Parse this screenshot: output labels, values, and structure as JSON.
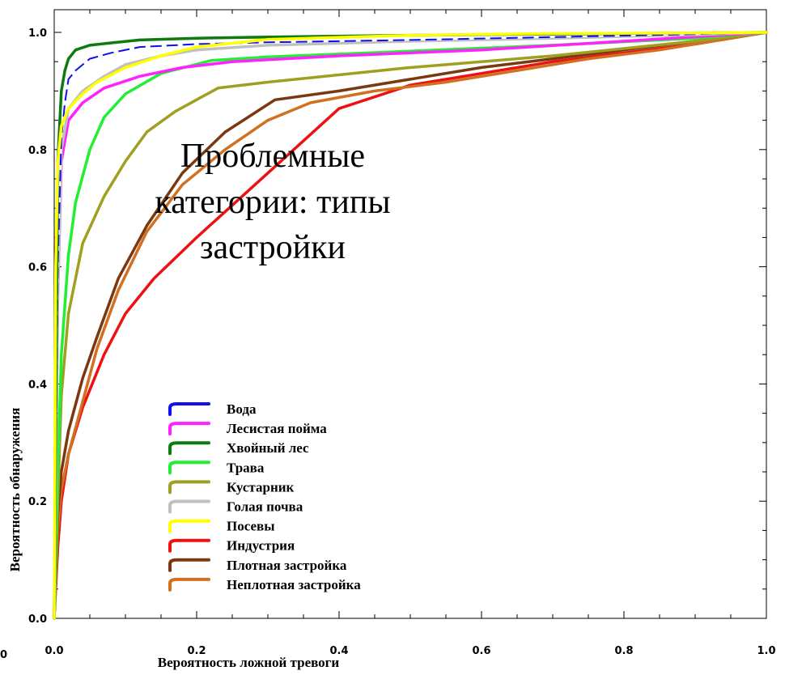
{
  "chart_data": {
    "type": "line",
    "title": "",
    "xlabel": "Вероятность ложной тревоги",
    "ylabel": "Вероятность обнаружения",
    "xlim": [
      0.0,
      1.0
    ],
    "ylim": [
      0.0,
      1.0
    ],
    "x_ticks": [
      "0.0",
      "0.2",
      "0.4",
      "0.6",
      "0.8",
      "1.0"
    ],
    "y_ticks": [
      "0.0",
      "0.2",
      "0.4",
      "0.6",
      "0.8",
      "1.0"
    ],
    "corner_label": "0",
    "grid": false,
    "legend_position": "bottom-left-center",
    "annotation": [
      "Проблемные",
      "категории: типы",
      "застройки"
    ],
    "series": [
      {
        "name": "Вода",
        "color": "#1010ee",
        "dashed": true,
        "x": [
          0,
          0.005,
          0.01,
          0.015,
          0.02,
          0.03,
          0.05,
          0.08,
          0.12,
          0.2,
          0.3,
          0.5,
          0.7,
          0.9,
          1.0
        ],
        "y": [
          0,
          0.6,
          0.82,
          0.88,
          0.92,
          0.935,
          0.955,
          0.965,
          0.975,
          0.98,
          0.983,
          0.987,
          0.992,
          0.997,
          1.0
        ]
      },
      {
        "name": "Лесистая пойма",
        "color": "#ff22ff",
        "dashed": false,
        "x": [
          0,
          0.005,
          0.01,
          0.02,
          0.04,
          0.07,
          0.12,
          0.18,
          0.25,
          0.4,
          0.6,
          0.8,
          1.0
        ],
        "y": [
          0,
          0.55,
          0.78,
          0.85,
          0.88,
          0.905,
          0.925,
          0.94,
          0.95,
          0.96,
          0.97,
          0.985,
          1.0
        ]
      },
      {
        "name": "Хвойный лес",
        "color": "#0f7a0f",
        "dashed": false,
        "x": [
          0,
          0.005,
          0.01,
          0.015,
          0.02,
          0.03,
          0.05,
          0.08,
          0.12,
          0.2,
          0.3,
          0.5,
          0.8,
          1.0
        ],
        "y": [
          0,
          0.78,
          0.9,
          0.935,
          0.955,
          0.97,
          0.978,
          0.982,
          0.987,
          0.99,
          0.992,
          0.995,
          0.998,
          1.0
        ]
      },
      {
        "name": "Трава",
        "color": "#22ee33",
        "dashed": false,
        "x": [
          0,
          0.005,
          0.01,
          0.02,
          0.03,
          0.05,
          0.07,
          0.1,
          0.15,
          0.22,
          0.3,
          0.5,
          0.7,
          0.9,
          1.0
        ],
        "y": [
          0,
          0.25,
          0.45,
          0.62,
          0.71,
          0.8,
          0.855,
          0.895,
          0.93,
          0.952,
          0.958,
          0.968,
          0.978,
          0.99,
          1.0
        ]
      },
      {
        "name": "Кустарник",
        "color": "#a0a020",
        "dashed": false,
        "x": [
          0,
          0.005,
          0.01,
          0.02,
          0.04,
          0.07,
          0.1,
          0.13,
          0.17,
          0.23,
          0.3,
          0.5,
          0.7,
          0.9,
          1.0
        ],
        "y": [
          0,
          0.2,
          0.38,
          0.52,
          0.64,
          0.72,
          0.78,
          0.83,
          0.865,
          0.905,
          0.915,
          0.94,
          0.96,
          0.985,
          1.0
        ]
      },
      {
        "name": "Голая почва",
        "color": "#c0c0c0",
        "dashed": false,
        "x": [
          0,
          0.005,
          0.01,
          0.02,
          0.04,
          0.07,
          0.1,
          0.15,
          0.2,
          0.3,
          0.5,
          0.7,
          0.9,
          1.0
        ],
        "y": [
          0,
          0.55,
          0.8,
          0.87,
          0.9,
          0.925,
          0.945,
          0.96,
          0.97,
          0.978,
          0.985,
          0.99,
          0.996,
          1.0
        ]
      },
      {
        "name": "Посевы",
        "color": "#ffff00",
        "dashed": false,
        "x": [
          0,
          0.002,
          0.005,
          0.01,
          0.02,
          0.04,
          0.06,
          0.1,
          0.15,
          0.2,
          0.3,
          0.5,
          0.7,
          0.9,
          1.0
        ],
        "y": [
          0,
          0.6,
          0.78,
          0.84,
          0.87,
          0.895,
          0.915,
          0.94,
          0.96,
          0.975,
          0.988,
          0.995,
          0.998,
          0.999,
          1.0
        ]
      },
      {
        "name": "Индустрия",
        "color": "#ee1111",
        "dashed": false,
        "x": [
          0,
          0.005,
          0.01,
          0.02,
          0.04,
          0.07,
          0.1,
          0.14,
          0.2,
          0.3,
          0.4,
          0.5,
          0.6,
          0.7,
          0.8,
          0.9,
          1.0
        ],
        "y": [
          0,
          0.12,
          0.2,
          0.28,
          0.36,
          0.45,
          0.52,
          0.58,
          0.65,
          0.76,
          0.87,
          0.91,
          0.93,
          0.95,
          0.965,
          0.98,
          1.0
        ]
      },
      {
        "name": "Плотная застройка",
        "color": "#7a3810",
        "dashed": false,
        "x": [
          0,
          0.005,
          0.01,
          0.02,
          0.04,
          0.06,
          0.09,
          0.13,
          0.18,
          0.24,
          0.31,
          0.4,
          0.5,
          0.6,
          0.7,
          0.8,
          0.9,
          1.0
        ],
        "y": [
          0,
          0.18,
          0.25,
          0.32,
          0.41,
          0.48,
          0.58,
          0.67,
          0.76,
          0.83,
          0.885,
          0.9,
          0.92,
          0.94,
          0.955,
          0.97,
          0.985,
          1.0
        ]
      },
      {
        "name": "Неплотная застройка",
        "color": "#d07020",
        "dashed": false,
        "x": [
          0,
          0.005,
          0.01,
          0.02,
          0.04,
          0.06,
          0.09,
          0.13,
          0.18,
          0.24,
          0.3,
          0.36,
          0.45,
          0.55,
          0.65,
          0.75,
          0.85,
          1.0
        ],
        "y": [
          0,
          0.15,
          0.22,
          0.28,
          0.37,
          0.46,
          0.56,
          0.66,
          0.74,
          0.8,
          0.85,
          0.88,
          0.9,
          0.915,
          0.935,
          0.955,
          0.97,
          1.0
        ]
      }
    ]
  }
}
